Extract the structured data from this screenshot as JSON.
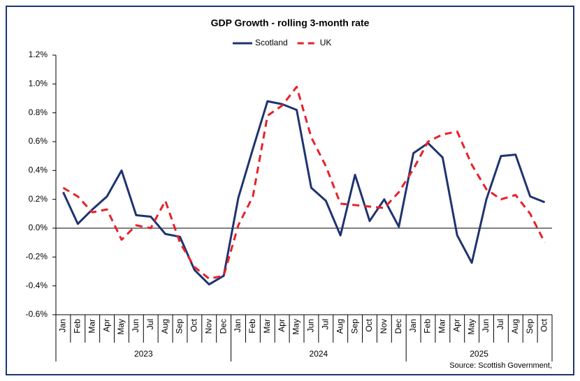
{
  "chart_data": {
    "type": "line",
    "title": "GDP Growth - rolling 3-month rate",
    "categories": [
      "Jan",
      "Feb",
      "Mar",
      "Apr",
      "May",
      "Jun",
      "Jul",
      "Aug",
      "Sep",
      "Oct",
      "Nov",
      "Dec",
      "Jan",
      "Feb",
      "Mar",
      "Apr",
      "May",
      "Jun",
      "Jul",
      "Aug",
      "Sep",
      "Oct",
      "Nov",
      "Dec",
      "Jan",
      "Feb",
      "Mar",
      "Apr",
      "May",
      "Jun",
      "Jul",
      "Aug",
      "Sep",
      "Oct"
    ],
    "years": [
      "2023",
      "2024",
      "2025"
    ],
    "series": [
      {
        "name": "Scotland",
        "color": "#1f3370",
        "dashed": false,
        "values": [
          0.25,
          0.03,
          0.13,
          0.22,
          0.4,
          0.09,
          0.08,
          -0.04,
          -0.06,
          -0.29,
          -0.39,
          -0.33,
          0.21,
          0.55,
          0.88,
          0.86,
          0.82,
          0.28,
          0.19,
          -0.05,
          0.37,
          0.05,
          0.2,
          0.01,
          0.52,
          0.59,
          0.49,
          -0.05,
          -0.24,
          0.2,
          0.5,
          0.51,
          0.22,
          0.18
        ]
      },
      {
        "name": "UK",
        "color": "#e8202a",
        "dashed": true,
        "values": [
          0.28,
          0.22,
          0.11,
          0.13,
          -0.08,
          0.02,
          0.0,
          0.19,
          -0.1,
          -0.27,
          -0.35,
          -0.33,
          0.02,
          0.22,
          0.78,
          0.85,
          0.98,
          0.63,
          0.43,
          0.17,
          0.16,
          0.15,
          0.14,
          0.25,
          0.41,
          0.6,
          0.65,
          0.67,
          0.44,
          0.27,
          0.2,
          0.23,
          0.1,
          -0.1
        ]
      }
    ],
    "ylim": [
      -0.6,
      1.2
    ],
    "yticks": [
      {
        "value": -0.6,
        "label": "-0.6%"
      },
      {
        "value": -0.4,
        "label": "-0.4%"
      },
      {
        "value": -0.2,
        "label": "-0.2%"
      },
      {
        "value": 0,
        "label": "0.0%"
      },
      {
        "value": 0.2,
        "label": "0.2%"
      },
      {
        "value": 0.4,
        "label": "0.4%"
      },
      {
        "value": 0.6,
        "label": "0.6%"
      },
      {
        "value": 0.8,
        "label": "0.8%"
      },
      {
        "value": 1.0,
        "label": "1.0%"
      },
      {
        "value": 1.2,
        "label": "1.2%"
      }
    ],
    "grid": false,
    "source": "Source: Scottish Government,"
  }
}
